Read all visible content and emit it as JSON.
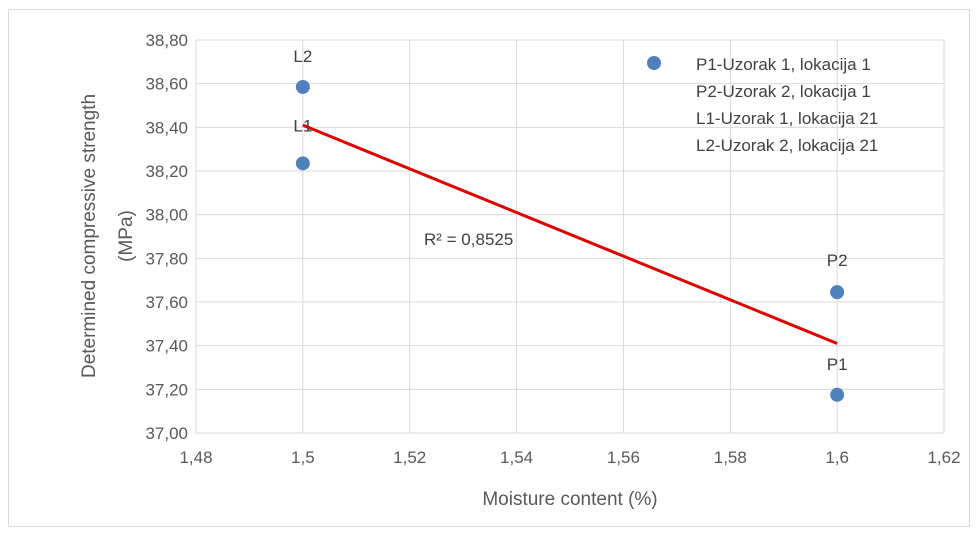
{
  "chart_data": {
    "type": "scatter",
    "xlabel": "Moisture content (%)",
    "ylabel_line1": "Determined compressive strength",
    "ylabel_line2": "(MPa)",
    "xlim": [
      1.48,
      1.62
    ],
    "ylim": [
      37.0,
      38.8
    ],
    "x_ticks": [
      "1,48",
      "1,5",
      "1,52",
      "1,54",
      "1,56",
      "1,58",
      "1,6",
      "1,62"
    ],
    "y_ticks": [
      "37,00",
      "37,20",
      "37,40",
      "37,60",
      "37,80",
      "38,00",
      "38,20",
      "38,40",
      "38,60",
      "38,80"
    ],
    "grid": true,
    "points": [
      {
        "label": "L2",
        "x": 1.5,
        "y": 38.585
      },
      {
        "label": "L1",
        "x": 1.5,
        "y": 38.235
      },
      {
        "label": "P2",
        "x": 1.6,
        "y": 37.645
      },
      {
        "label": "P1",
        "x": 1.6,
        "y": 37.175
      }
    ],
    "trendline": {
      "x": [
        1.5,
        1.6
      ],
      "y": [
        38.41,
        37.41
      ],
      "color": "#e00000"
    },
    "r_squared_label": "R² = 0,8525",
    "legend": [
      "P1-Uzorak 1, lokacija 1",
      "P2-Uzorak 2, lokacija 1",
      "L1-Uzorak 1, lokacija 21",
      "L2-Uzorak 2, lokacija 21"
    ],
    "marker_color": "#4f81bd"
  }
}
